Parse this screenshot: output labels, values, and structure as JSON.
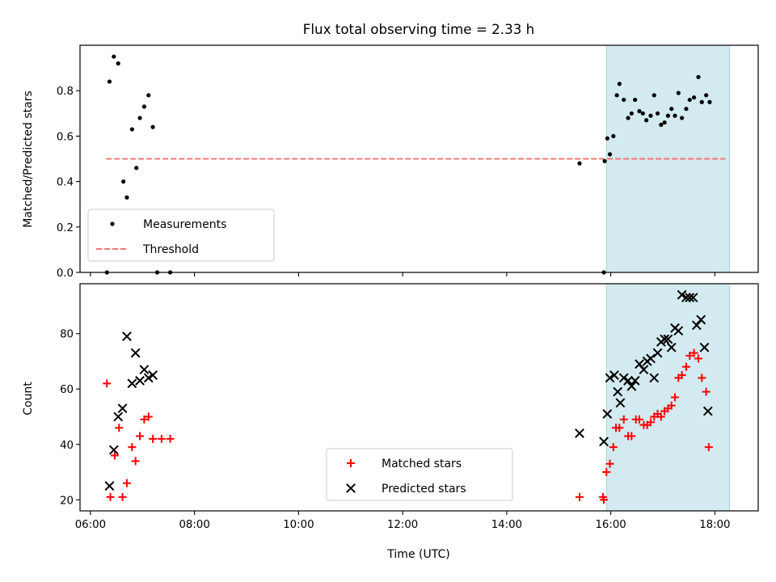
{
  "chart_data": [
    {
      "type": "scatter",
      "title": "Flux total observing time = 2.33 h",
      "xlabel": "",
      "ylabel": "Matched/Predicted stars",
      "xlim": [
        "05:48",
        "18:50"
      ],
      "ylim": [
        0,
        1.0
      ],
      "yticks": [
        "0.0",
        "0.2",
        "0.4",
        "0.6",
        "0.8"
      ],
      "xticks": [
        "06:00",
        "08:00",
        "10:00",
        "12:00",
        "14:00",
        "16:00",
        "18:00"
      ],
      "xtick_labels_visible": false,
      "shaded_region": [
        "15:55",
        "18:17"
      ],
      "shaded_color": "#d3eaf0",
      "threshold": {
        "name": "Threshold",
        "x": [
          "06:18",
          "18:12"
        ],
        "y": 0.5,
        "color": "#f07878"
      },
      "legend": {
        "position": "lower-left",
        "entries": [
          "Measurements",
          "Threshold"
        ]
      },
      "series": [
        {
          "name": "Measurements",
          "color": "#000000",
          "marker": "dot",
          "points": [
            [
              "06:19",
              0.0
            ],
            [
              "06:22",
              0.84
            ],
            [
              "06:27",
              0.95
            ],
            [
              "06:32",
              0.92
            ],
            [
              "06:38",
              0.4
            ],
            [
              "06:42",
              0.33
            ],
            [
              "06:48",
              0.63
            ],
            [
              "06:53",
              0.46
            ],
            [
              "06:57",
              0.68
            ],
            [
              "07:02",
              0.73
            ],
            [
              "07:07",
              0.78
            ],
            [
              "07:12",
              0.64
            ],
            [
              "07:17",
              0.0
            ],
            [
              "07:32",
              0.0
            ],
            [
              "15:24",
              0.48
            ],
            [
              "15:52",
              0.0
            ],
            [
              "15:53",
              0.49
            ],
            [
              "15:56",
              0.59
            ],
            [
              "15:59",
              0.52
            ],
            [
              "16:03",
              0.6
            ],
            [
              "16:07",
              0.78
            ],
            [
              "16:10",
              0.83
            ],
            [
              "16:15",
              0.76
            ],
            [
              "16:20",
              0.68
            ],
            [
              "16:24",
              0.7
            ],
            [
              "16:28",
              0.76
            ],
            [
              "16:33",
              0.71
            ],
            [
              "16:37",
              0.7
            ],
            [
              "16:41",
              0.67
            ],
            [
              "16:46",
              0.69
            ],
            [
              "16:50",
              0.78
            ],
            [
              "16:54",
              0.7
            ],
            [
              "16:58",
              0.65
            ],
            [
              "17:02",
              0.66
            ],
            [
              "17:06",
              0.69
            ],
            [
              "17:10",
              0.72
            ],
            [
              "17:14",
              0.69
            ],
            [
              "17:18",
              0.79
            ],
            [
              "17:22",
              0.68
            ],
            [
              "17:27",
              0.72
            ],
            [
              "17:31",
              0.76
            ],
            [
              "17:36",
              0.77
            ],
            [
              "17:41",
              0.86
            ],
            [
              "17:45",
              0.75
            ],
            [
              "17:50",
              0.78
            ],
            [
              "17:54",
              0.75
            ]
          ]
        }
      ]
    },
    {
      "type": "scatter",
      "title": "",
      "xlabel": "Time (UTC)",
      "ylabel": "Count",
      "xlim": [
        "05:48",
        "18:50"
      ],
      "ylim": [
        16,
        98
      ],
      "yticks": [
        "20",
        "40",
        "60",
        "80"
      ],
      "xticks": [
        "06:00",
        "08:00",
        "10:00",
        "12:00",
        "14:00",
        "16:00",
        "18:00"
      ],
      "shaded_region": [
        "15:55",
        "18:17"
      ],
      "shaded_color": "#d3eaf0",
      "legend": {
        "position": "lower-center",
        "entries": [
          "Matched stars",
          "Predicted stars"
        ]
      },
      "series": [
        {
          "name": "Matched stars",
          "color": "#ff0000",
          "marker": "plus",
          "points": [
            [
              "06:19",
              62
            ],
            [
              "06:23",
              21
            ],
            [
              "06:28",
              36
            ],
            [
              "06:33",
              46
            ],
            [
              "06:37",
              21
            ],
            [
              "06:42",
              26
            ],
            [
              "06:48",
              39
            ],
            [
              "06:52",
              34
            ],
            [
              "06:57",
              43
            ],
            [
              "07:02",
              49
            ],
            [
              "07:07",
              50
            ],
            [
              "07:12",
              42
            ],
            [
              "07:22",
              42
            ],
            [
              "07:32",
              42
            ],
            [
              "15:24",
              21
            ],
            [
              "15:51",
              21
            ],
            [
              "15:52",
              20
            ],
            [
              "15:55",
              30
            ],
            [
              "15:59",
              33
            ],
            [
              "16:03",
              39
            ],
            [
              "16:06",
              46
            ],
            [
              "16:10",
              46
            ],
            [
              "16:15",
              49
            ],
            [
              "16:20",
              43
            ],
            [
              "16:24",
              43
            ],
            [
              "16:29",
              49
            ],
            [
              "16:33",
              49
            ],
            [
              "16:38",
              47
            ],
            [
              "16:42",
              47
            ],
            [
              "16:46",
              48
            ],
            [
              "16:50",
              50
            ],
            [
              "16:54",
              51
            ],
            [
              "16:58",
              50
            ],
            [
              "17:02",
              52
            ],
            [
              "17:06",
              53
            ],
            [
              "17:10",
              54
            ],
            [
              "17:14",
              57
            ],
            [
              "17:18",
              64
            ],
            [
              "17:22",
              65
            ],
            [
              "17:27",
              68
            ],
            [
              "17:31",
              72
            ],
            [
              "17:36",
              73
            ],
            [
              "17:41",
              71
            ],
            [
              "17:45",
              64
            ],
            [
              "17:50",
              59
            ],
            [
              "17:53",
              39
            ]
          ]
        },
        {
          "name": "Predicted stars",
          "color": "#000000",
          "marker": "x",
          "points": [
            [
              "06:22",
              25
            ],
            [
              "06:27",
              38
            ],
            [
              "06:32",
              50
            ],
            [
              "06:37",
              53
            ],
            [
              "06:42",
              79
            ],
            [
              "06:48",
              62
            ],
            [
              "06:52",
              73
            ],
            [
              "06:57",
              63
            ],
            [
              "07:02",
              67
            ],
            [
              "07:07",
              64
            ],
            [
              "07:12",
              65
            ],
            [
              "15:24",
              44
            ],
            [
              "15:52",
              41
            ],
            [
              "15:56",
              51
            ],
            [
              "15:59",
              64
            ],
            [
              "16:04",
              65
            ],
            [
              "16:08",
              59
            ],
            [
              "16:11",
              55
            ],
            [
              "16:15",
              64
            ],
            [
              "16:20",
              63
            ],
            [
              "16:24",
              61
            ],
            [
              "16:28",
              63
            ],
            [
              "16:33",
              69
            ],
            [
              "16:38",
              67
            ],
            [
              "16:42",
              70
            ],
            [
              "16:46",
              71
            ],
            [
              "16:50",
              64
            ],
            [
              "16:54",
              73
            ],
            [
              "16:58",
              77
            ],
            [
              "17:02",
              78
            ],
            [
              "17:06",
              78
            ],
            [
              "17:10",
              75
            ],
            [
              "17:14",
              82
            ],
            [
              "17:18",
              81
            ],
            [
              "17:22",
              94
            ],
            [
              "17:27",
              93
            ],
            [
              "17:31",
              93
            ],
            [
              "17:35",
              93
            ],
            [
              "17:39",
              83
            ],
            [
              "17:44",
              85
            ],
            [
              "17:48",
              75
            ],
            [
              "17:52",
              52
            ]
          ]
        }
      ]
    }
  ]
}
